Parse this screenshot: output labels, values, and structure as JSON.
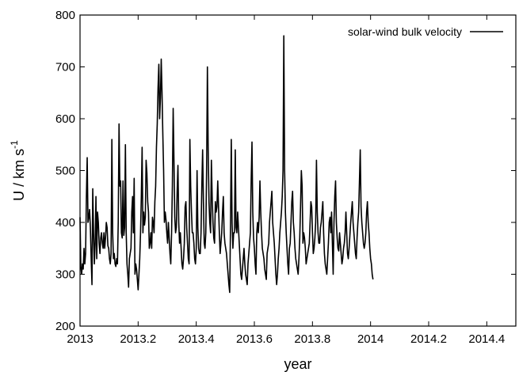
{
  "chart_data": {
    "type": "line",
    "xlabel": "year",
    "ylabel_main": "U / km s",
    "ylabel_sup": "-1",
    "xlim": [
      2013,
      2014.5
    ],
    "ylim": [
      200,
      800
    ],
    "x_ticks": [
      2013,
      2013.2,
      2013.4,
      2013.6,
      2013.8,
      2014,
      2014.2,
      2014.4
    ],
    "x_tick_labels": [
      "2013",
      "2013.2",
      "2013.4",
      "2013.6",
      "2013.8",
      "2014",
      "2014.2",
      "2014.4"
    ],
    "y_ticks": [
      200,
      300,
      400,
      500,
      600,
      700,
      800
    ],
    "y_tick_labels": [
      "200",
      "300",
      "400",
      "500",
      "600",
      "700",
      "800"
    ],
    "grid": false,
    "legend_position": "top-right",
    "series": [
      {
        "name": "solar-wind bulk velocity",
        "color": "#000000",
        "x_start": 2013.0,
        "x_step": 0.00274,
        "values": [
          410,
          315,
          300,
          320,
          310,
          350,
          320,
          340,
          450,
          525,
          400,
          410,
          425,
          390,
          330,
          280,
          465,
          380,
          320,
          360,
          450,
          330,
          420,
          400,
          360,
          340,
          370,
          380,
          360,
          350,
          380,
          350,
          370,
          400,
          390,
          355,
          350,
          330,
          320,
          340,
          560,
          380,
          330,
          340,
          320,
          315,
          330,
          320,
          400,
          590,
          470,
          480,
          380,
          370,
          480,
          375,
          390,
          550,
          380,
          320,
          300,
          275,
          330,
          340,
          350,
          420,
          450,
          380,
          485,
          300,
          320,
          310,
          290,
          270,
          300,
          330,
          380,
          450,
          545,
          380,
          420,
          395,
          410,
          520,
          495,
          440,
          420,
          350,
          360,
          380,
          350,
          410,
          400,
          380,
          440,
          470,
          545,
          590,
          660,
          705,
          600,
          640,
          715,
          650,
          570,
          500,
          400,
          420,
          405,
          380,
          360,
          400,
          370,
          340,
          320,
          380,
          470,
          620,
          520,
          410,
          380,
          390,
          460,
          510,
          400,
          360,
          380,
          350,
          320,
          310,
          330,
          360,
          430,
          440,
          390,
          360,
          330,
          320,
          560,
          470,
          420,
          380,
          380,
          360,
          330,
          320,
          350,
          500,
          390,
          350,
          340,
          340,
          380,
          470,
          540,
          440,
          360,
          350,
          380,
          500,
          700,
          540,
          440,
          400,
          380,
          520,
          450,
          400,
          370,
          360,
          440,
          420,
          430,
          480,
          430,
          380,
          340,
          360,
          380,
          420,
          450,
          380,
          360,
          350,
          340,
          320,
          300,
          280,
          265,
          390,
          560,
          400,
          350,
          380,
          380,
          540,
          390,
          380,
          420,
          390,
          360,
          330,
          300,
          290,
          310,
          330,
          350,
          320,
          300,
          290,
          280,
          320,
          340,
          360,
          380,
          480,
          555,
          420,
          370,
          350,
          320,
          300,
          380,
          400,
          380,
          410,
          480,
          420,
          380,
          350,
          340,
          330,
          310,
          300,
          290,
          340,
          350,
          360,
          400,
          420,
          440,
          460,
          400,
          380,
          360,
          330,
          300,
          280,
          300,
          330,
          350,
          380,
          400,
          420,
          450,
          500,
          760,
          500,
          420,
          380,
          350,
          320,
          300,
          350,
          360,
          400,
          440,
          460,
          400,
          380,
          350,
          330,
          320,
          310,
          300,
          330,
          370,
          430,
          500,
          470,
          360,
          380,
          370,
          350,
          320,
          330,
          340,
          350,
          360,
          400,
          440,
          430,
          380,
          340,
          350,
          370,
          400,
          520,
          420,
          380,
          360,
          360,
          390,
          400,
          420,
          440,
          380,
          340,
          320,
          310,
          300,
          330,
          360,
          400,
          410,
          380,
          420,
          360,
          300,
          400,
          450,
          480,
          400,
          370,
          350,
          345,
          380,
          360,
          340,
          320,
          330,
          350,
          360,
          380,
          420,
          380,
          340,
          330,
          350,
          375,
          400,
          420,
          440,
          400,
          380,
          360,
          340,
          330,
          370,
          400,
          420,
          480,
          540,
          430,
          400,
          380,
          360,
          350,
          360,
          380,
          420,
          440,
          400,
          380,
          350,
          330,
          320,
          300,
          290
        ]
      }
    ]
  }
}
